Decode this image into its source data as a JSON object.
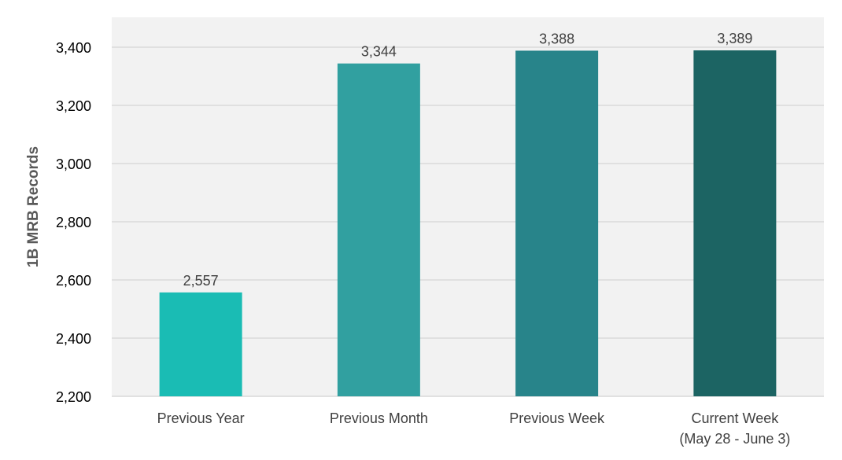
{
  "chart_data": {
    "type": "bar",
    "title": "",
    "xlabel": "",
    "ylabel": "1B MRB Records",
    "ylim": [
      2200,
      3500
    ],
    "yticks": [
      2200,
      2400,
      2600,
      2800,
      3000,
      3200,
      3400
    ],
    "ytick_labels": [
      "2,200",
      "2,400",
      "2,600",
      "2,800",
      "3,000",
      "3,200",
      "3,400"
    ],
    "categories": [
      [
        "Previous Year"
      ],
      [
        "Previous Month"
      ],
      [
        "Previous Week"
      ],
      [
        "Current Week",
        "(May 28 - June 3)"
      ]
    ],
    "values": [
      2557,
      3344,
      3388,
      3389
    ],
    "value_labels": [
      "2,557",
      "3,344",
      "3,388",
      "3,389"
    ],
    "bar_colors": [
      "#1abcb4",
      "#31a0a0",
      "#28848a",
      "#1c6463"
    ],
    "plot_background": "#f2f2f2",
    "grid": true,
    "grid_color": "#d9d9d9",
    "legend": "none"
  }
}
